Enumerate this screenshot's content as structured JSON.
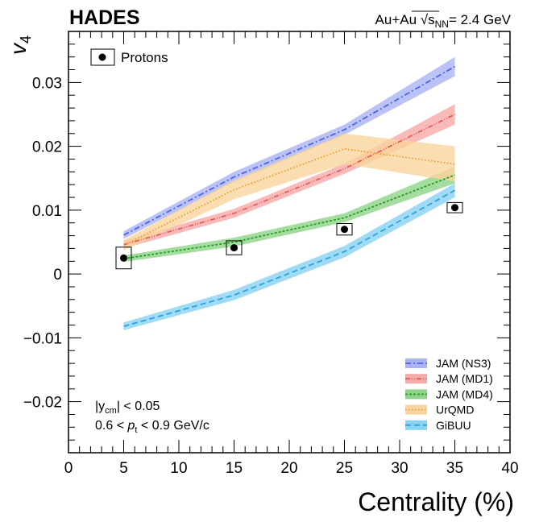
{
  "chart_data": {
    "type": "line",
    "experiment": "HADES",
    "system_label": "Au+Au",
    "energy_label": "= 2.4 GeV",
    "sqrt_symbol": "√",
    "sqrt_var": "s",
    "sqrt_sub": "NN",
    "ylabel": "v",
    "ylabel_sub": "4",
    "xlabel": "Centrality (%)",
    "xlim": [
      0,
      40
    ],
    "ylim": [
      -0.028,
      0.038
    ],
    "x_ticks": [
      0,
      5,
      10,
      15,
      20,
      25,
      30,
      35,
      40
    ],
    "x_tick_labels": [
      "0",
      "5",
      "10",
      "15",
      "20",
      "25",
      "30",
      "35",
      "40"
    ],
    "y_ticks": [
      -0.02,
      -0.01,
      0,
      0.01,
      0.02,
      0.03
    ],
    "y_tick_labels": [
      "−0.02",
      "−0.01",
      "0",
      "0.01",
      "0.02",
      "0.03"
    ],
    "cut_label_1a": "|y",
    "cut_label_1sub": "cm",
    "cut_label_1b": "| < 0.05",
    "cut_label_2a": "0.6 < ",
    "cut_label_2p": "p",
    "cut_label_2sub": "t",
    "cut_label_2b": " < 0.9 GeV/c",
    "data_series": {
      "name": "Protons",
      "x": [
        5,
        15,
        25,
        35
      ],
      "y": [
        0.0025,
        0.0041,
        0.007,
        0.0104
      ],
      "syst": [
        0.0017,
        0.0011,
        0.0009,
        0.0008
      ]
    },
    "series": [
      {
        "name": "JAM (NS3)",
        "x": [
          5,
          15,
          25,
          35
        ],
        "y": [
          0.0061,
          0.0152,
          0.0226,
          0.0325
        ],
        "lower": [
          0.0055,
          0.0144,
          0.0218,
          0.031
        ],
        "upper": [
          0.0067,
          0.016,
          0.0234,
          0.034
        ],
        "color": "#4f63e6",
        "fill": "#aab4f4",
        "dash": "7,3,2,3"
      },
      {
        "name": "JAM (MD1)",
        "x": [
          5,
          15,
          25,
          35
        ],
        "y": [
          0.0046,
          0.0095,
          0.0165,
          0.025
        ],
        "lower": [
          0.004,
          0.0088,
          0.0157,
          0.0234
        ],
        "upper": [
          0.0052,
          0.0102,
          0.0173,
          0.0266
        ],
        "color": "#e55a5a",
        "fill": "#f6aaa8",
        "dash": "6,2,1,2,1,2"
      },
      {
        "name": "JAM (MD4)",
        "x": [
          5,
          15,
          25,
          35
        ],
        "y": [
          0.0024,
          0.005,
          0.0088,
          0.0155
        ],
        "lower": [
          0.0019,
          0.0043,
          0.0081,
          0.0142
        ],
        "upper": [
          0.0029,
          0.0057,
          0.0095,
          0.0168
        ],
        "color": "#26a026",
        "fill": "#8fd388",
        "dash": "3,2"
      },
      {
        "name": "UrQMD",
        "x": [
          5,
          15,
          25,
          35
        ],
        "y": [
          0.0045,
          0.0132,
          0.0196,
          0.0172
        ],
        "lower": [
          0.0037,
          0.0117,
          0.0172,
          0.0145
        ],
        "upper": [
          0.0053,
          0.0147,
          0.022,
          0.02
        ],
        "color": "#f09a25",
        "fill": "#f9d49c",
        "dash": "1.5,2.5"
      },
      {
        "name": "GiBUU",
        "x": [
          5,
          15,
          25,
          35
        ],
        "y": [
          -0.0082,
          -0.0033,
          0.0035,
          0.0131
        ],
        "lower": [
          -0.0088,
          -0.0041,
          0.0026,
          0.012
        ],
        "upper": [
          -0.0076,
          -0.0025,
          0.0044,
          0.0142
        ],
        "color": "#2da3dc",
        "fill": "#88d2f4",
        "dash": "7,4"
      }
    ]
  }
}
